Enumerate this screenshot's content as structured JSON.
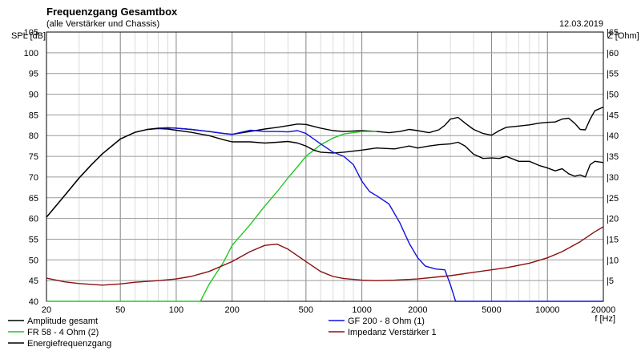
{
  "header": {
    "title": "Frequenzgang Gesamtbox",
    "subtitle": "(alle Verstärker und Chassis)",
    "date": "12.03.2019"
  },
  "chart_data": {
    "type": "line",
    "title": "Frequenzgang Gesamtbox",
    "subtitle": "(alle Verstärker und Chassis)",
    "xlabel": "f [Hz]",
    "ylabel_left": "SPL [dB]",
    "ylabel_right": "Z [Ohm]",
    "xscale": "log",
    "xlim": [
      20,
      20000
    ],
    "ylim_left": [
      40,
      105
    ],
    "ylim_right": [
      0,
      65
    ],
    "grid": true,
    "x_ticks": [
      20,
      50,
      100,
      200,
      500,
      1000,
      2000,
      5000,
      10000,
      20000
    ],
    "x_tick_labels": [
      "20",
      "50",
      "100",
      "200",
      "500",
      "1000",
      "2000",
      "5000",
      "10000",
      "20000"
    ],
    "y_ticks_left": [
      40,
      45,
      50,
      55,
      60,
      65,
      70,
      75,
      80,
      85,
      90,
      95,
      100,
      105
    ],
    "y_ticks_right": [
      5,
      10,
      15,
      20,
      25,
      30,
      35,
      40,
      45,
      50,
      55,
      60,
      65
    ],
    "legend_position": "bottom",
    "series": [
      {
        "name": "Amplitude gesamt",
        "color": "#000000",
        "axis": "left",
        "x": [
          20,
          25,
          30,
          35,
          40,
          50,
          60,
          70,
          80,
          90,
          100,
          120,
          150,
          180,
          200,
          250,
          300,
          350,
          400,
          450,
          500,
          600,
          700,
          800,
          1000,
          1200,
          1400,
          1600,
          1800,
          2000,
          2300,
          2600,
          2800,
          3000,
          3300,
          3600,
          4000,
          4500,
          5000,
          5500,
          6000,
          7000,
          8000,
          9000,
          10000,
          11000,
          12000,
          13000,
          14000,
          15000,
          16000,
          17000,
          18000,
          20000
        ],
        "y": [
          60.3,
          65.5,
          69.8,
          73.0,
          75.6,
          79.2,
          80.8,
          81.5,
          81.8,
          81.9,
          81.8,
          81.5,
          81.0,
          80.5,
          80.3,
          81.0,
          81.6,
          82.0,
          82.4,
          82.8,
          82.7,
          81.8,
          81.2,
          81.0,
          81.2,
          81.0,
          80.7,
          81.0,
          81.5,
          81.2,
          80.7,
          81.4,
          82.5,
          84.0,
          84.4,
          83.0,
          81.5,
          80.5,
          80.1,
          81.2,
          82.0,
          82.3,
          82.6,
          83.0,
          83.2,
          83.3,
          84.0,
          84.2,
          83.0,
          81.5,
          81.4,
          84.0,
          86.0,
          86.9
        ]
      },
      {
        "name": "FR 58 - 4 Ohm (2)",
        "color": "#22c822",
        "axis": "left",
        "x": [
          20,
          50,
          100,
          130,
          135,
          150,
          180,
          200,
          250,
          300,
          350,
          400,
          450,
          500,
          600,
          700,
          800,
          1000,
          1200
        ],
        "y": [
          40.0,
          40.0,
          40.0,
          40.0,
          40.0,
          44.0,
          49.5,
          53.5,
          58.5,
          63.0,
          66.5,
          69.8,
          72.5,
          75.0,
          77.8,
          79.4,
          80.4,
          81.0,
          81.0
        ]
      },
      {
        "name": "Energiefrequenzgang",
        "color": "#000000",
        "axis": "left",
        "x": [
          20,
          25,
          30,
          35,
          40,
          50,
          60,
          70,
          80,
          90,
          100,
          120,
          150,
          180,
          200,
          250,
          300,
          350,
          400,
          450,
          500,
          550,
          600,
          700,
          800,
          1000,
          1200,
          1500,
          1800,
          2000,
          2300,
          2600,
          3000,
          3300,
          3600,
          4000,
          4500,
          5000,
          5500,
          6000,
          7000,
          8000,
          9000,
          10000,
          11000,
          12000,
          13000,
          14000,
          15000,
          16000,
          17000,
          18000,
          20000
        ],
        "y": [
          60.3,
          65.5,
          69.8,
          73.0,
          75.6,
          79.2,
          80.8,
          81.5,
          81.7,
          81.6,
          81.3,
          80.8,
          80.0,
          79.0,
          78.5,
          78.5,
          78.2,
          78.4,
          78.6,
          78.2,
          77.5,
          76.5,
          76.0,
          75.8,
          76.0,
          76.5,
          77.0,
          76.8,
          77.5,
          77.0,
          77.5,
          77.8,
          78.0,
          78.4,
          77.5,
          75.5,
          74.5,
          74.6,
          74.5,
          75.0,
          73.8,
          73.8,
          72.8,
          72.2,
          71.5,
          72.0,
          70.8,
          70.2,
          70.5,
          70.0,
          73.0,
          73.8,
          73.5
        ]
      },
      {
        "name": "GF 200 - 8 Ohm (1)",
        "color": "#1010e0",
        "axis": "left",
        "x": [
          80,
          90,
          100,
          120,
          150,
          180,
          200,
          250,
          300,
          350,
          400,
          450,
          500,
          600,
          700,
          800,
          900,
          1000,
          1100,
          1200,
          1400,
          1600,
          1800,
          2000,
          2200,
          2500,
          2800,
          3000,
          3100,
          3200,
          5000,
          10000,
          20000
        ],
        "y": [
          81.8,
          81.9,
          81.8,
          81.5,
          81.0,
          80.5,
          80.3,
          81.3,
          81.0,
          81.0,
          80.9,
          81.2,
          80.5,
          78.0,
          76.0,
          75.0,
          73.0,
          69.0,
          66.5,
          65.5,
          63.5,
          59.0,
          54.0,
          50.5,
          48.5,
          47.8,
          47.6,
          44.0,
          42.0,
          40.0,
          40.0,
          40.0,
          40.0
        ]
      },
      {
        "name": "Impedanz Verstärker 1",
        "color": "#8b1010",
        "axis": "right",
        "x": [
          20,
          25,
          30,
          40,
          50,
          60,
          80,
          100,
          120,
          150,
          200,
          250,
          300,
          350,
          400,
          500,
          600,
          700,
          800,
          1000,
          1200,
          1500,
          2000,
          3000,
          4000,
          5000,
          6000,
          8000,
          10000,
          12000,
          15000,
          18000,
          20000
        ],
        "y": [
          5.6,
          4.7,
          4.3,
          3.9,
          4.2,
          4.6,
          5.0,
          5.4,
          6.0,
          7.2,
          9.6,
          12.0,
          13.5,
          13.8,
          12.6,
          9.6,
          7.2,
          6.0,
          5.5,
          5.1,
          5.0,
          5.1,
          5.4,
          6.2,
          7.0,
          7.6,
          8.1,
          9.2,
          10.5,
          12.0,
          14.4,
          16.8,
          18.0
        ]
      }
    ]
  }
}
